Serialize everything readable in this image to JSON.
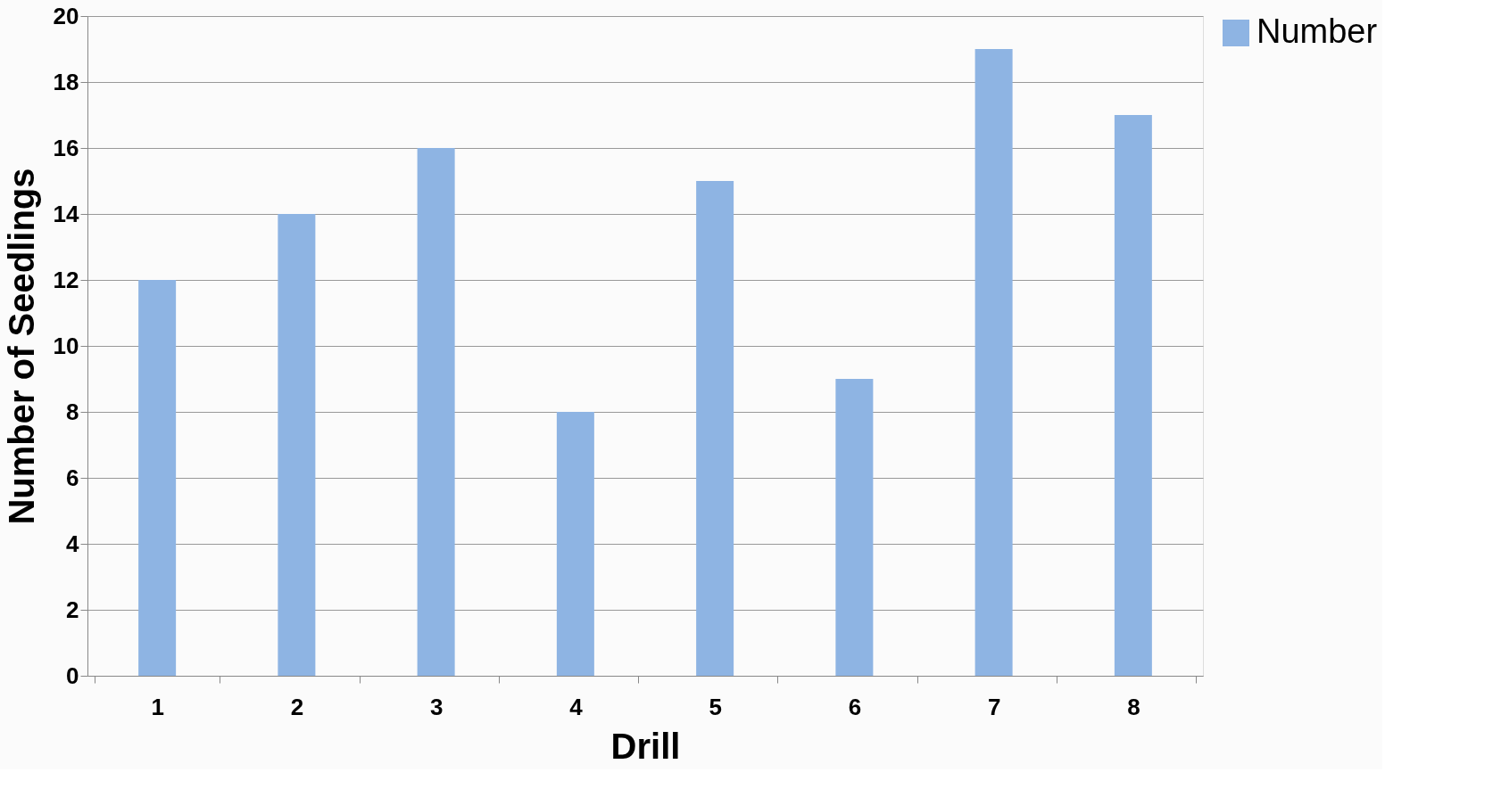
{
  "chart_data": {
    "type": "bar",
    "xlabel": "Drill",
    "ylabel": "Number of Seedlings",
    "categories": [
      "1",
      "2",
      "3",
      "4",
      "5",
      "6",
      "7",
      "8"
    ],
    "series": [
      {
        "name": "Number",
        "color": "#8eb4e3",
        "values": [
          12,
          14,
          16,
          8,
          15,
          9,
          19,
          17
        ]
      }
    ],
    "ylim": [
      0,
      20
    ],
    "yticks": [
      0,
      2,
      4,
      6,
      8,
      10,
      12,
      14,
      16,
      18,
      20
    ],
    "grid": "y",
    "legend": "right"
  }
}
